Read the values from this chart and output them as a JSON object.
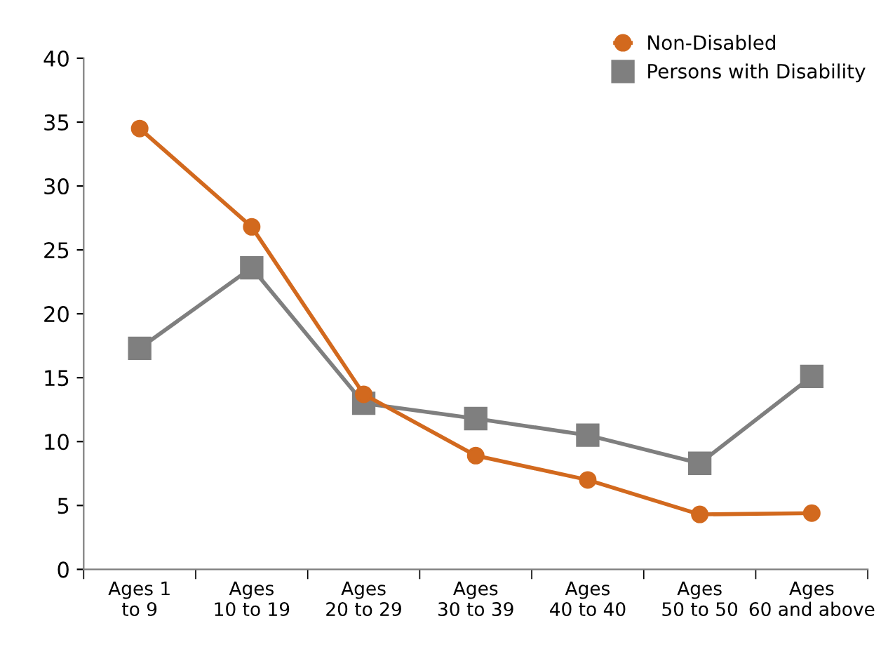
{
  "chart_data": {
    "type": "line",
    "categories": [
      "Ages 1\nto 9",
      "Ages\n10 to 19",
      "Ages\n20 to 29",
      "Ages\n30 to 39",
      "Ages\n40 to 40",
      "Ages\n50 to 50",
      "Ages\n60 and above"
    ],
    "series": [
      {
        "name": "Non-Disabled",
        "color": "#d2691e",
        "marker": "circle",
        "values": [
          34.5,
          26.8,
          13.7,
          8.9,
          7.0,
          4.3,
          4.4
        ]
      },
      {
        "name": "Persons with Disability",
        "color": "#7f7f7f",
        "marker": "square",
        "values": [
          17.3,
          23.6,
          13.0,
          11.8,
          10.5,
          8.3,
          15.1
        ]
      }
    ],
    "ylim": [
      0,
      40
    ],
    "yticks": [
      0,
      5,
      10,
      15,
      20,
      25,
      30,
      35,
      40
    ],
    "grid": false,
    "legend": "top right"
  }
}
